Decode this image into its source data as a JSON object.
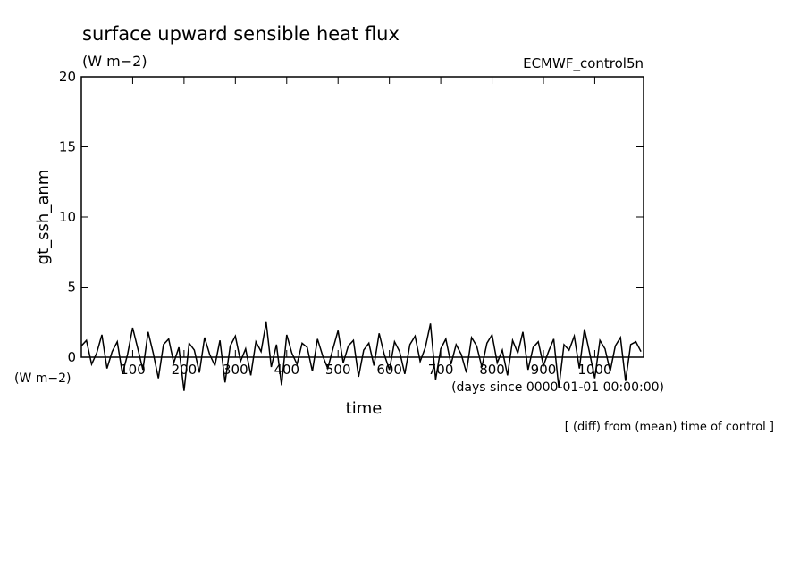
{
  "chart_data": {
    "type": "line",
    "title": "surface upward sensible heat flux",
    "units": "(W m−2)",
    "source": "ECMWF_control5n",
    "y_label": "gt_ssh_anm",
    "y_units": "(W m−2)",
    "x_label": "time",
    "x_units": "(days since 0000-01-01 00:00:00)",
    "note": "[ (diff) from (mean) time of control ]",
    "xlim": [
      0,
      1095
    ],
    "ylim": [
      0,
      20
    ],
    "xticks": [
      100,
      200,
      300,
      400,
      500,
      600,
      700,
      800,
      900,
      1000
    ],
    "yticks": [
      0,
      5,
      10,
      15,
      20
    ],
    "x": [
      0,
      10,
      20,
      30,
      40,
      50,
      60,
      70,
      80,
      90,
      100,
      110,
      120,
      130,
      140,
      150,
      160,
      170,
      180,
      190,
      200,
      210,
      220,
      230,
      240,
      250,
      260,
      270,
      280,
      290,
      300,
      310,
      320,
      330,
      340,
      350,
      360,
      370,
      380,
      390,
      400,
      410,
      420,
      430,
      440,
      450,
      460,
      470,
      480,
      490,
      500,
      510,
      520,
      530,
      540,
      550,
      560,
      570,
      580,
      590,
      600,
      610,
      620,
      630,
      640,
      650,
      660,
      670,
      680,
      690,
      700,
      710,
      720,
      730,
      740,
      750,
      760,
      770,
      780,
      790,
      800,
      810,
      820,
      830,
      840,
      850,
      860,
      870,
      880,
      890,
      900,
      910,
      920,
      930,
      940,
      950,
      960,
      970,
      980,
      990,
      1000,
      1010,
      1020,
      1030,
      1040,
      1050,
      1060,
      1070,
      1080,
      1090
    ],
    "series": [
      {
        "color": "#000000",
        "values": [
          0.8,
          1.2,
          -0.5,
          0.3,
          1.6,
          -0.8,
          0.4,
          1.1,
          -1.2,
          0.2,
          2.1,
          0.6,
          -0.9,
          1.8,
          0.3,
          -1.5,
          0.9,
          1.3,
          -0.4,
          0.7,
          -2.4,
          1.0,
          0.5,
          -1.1,
          1.4,
          0.2,
          -0.6,
          1.2,
          -1.8,
          0.8,
          1.5,
          -0.3,
          0.6,
          -1.3,
          1.1,
          0.4,
          2.5,
          -0.7,
          0.9,
          -2.0,
          1.6,
          0.3,
          -0.5,
          1.0,
          0.7,
          -1.0,
          1.3,
          0.1,
          -0.8,
          0.6,
          1.9,
          -0.4,
          0.8,
          1.2,
          -1.4,
          0.5,
          1.0,
          -0.6,
          1.7,
          0.2,
          -0.9,
          1.1,
          0.4,
          -1.2,
          0.9,
          1.5,
          -0.3,
          0.7,
          2.4,
          -1.6,
          0.6,
          1.3,
          -0.5,
          0.9,
          0.2,
          -1.1,
          1.4,
          0.8,
          -0.7,
          1.0,
          1.6,
          -0.4,
          0.5,
          -1.3,
          1.2,
          0.3,
          1.8,
          -0.9,
          0.7,
          1.1,
          -0.6,
          0.4,
          1.3,
          -2.2,
          0.9,
          0.5,
          1.5,
          -0.8,
          2.0,
          0.3,
          -1.5,
          1.2,
          0.6,
          -1.0,
          0.8,
          1.4,
          -1.7,
          0.9,
          1.1,
          0.4
        ]
      }
    ]
  }
}
